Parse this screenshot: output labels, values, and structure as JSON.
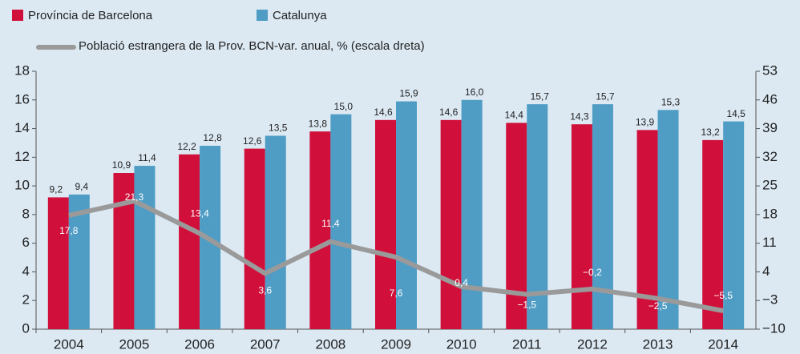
{
  "chart_data": {
    "type": "bar",
    "categories": [
      "2004",
      "2005",
      "2006",
      "2007",
      "2008",
      "2009",
      "2010",
      "2011",
      "2012",
      "2013",
      "2014"
    ],
    "series": [
      {
        "name": "Província de Barcelona",
        "color": "#d0103a",
        "values": [
          9.2,
          10.9,
          12.2,
          12.6,
          13.8,
          14.6,
          14.6,
          14.4,
          14.3,
          13.9,
          13.2
        ],
        "value_labels": [
          "9,2",
          "10,9",
          "12,2",
          "12,6",
          "13,8",
          "14,6",
          "14,6",
          "14,4",
          "14,3",
          "13,9",
          "13,2"
        ]
      },
      {
        "name": "Catalunya",
        "color": "#4f9dc4",
        "values": [
          9.4,
          11.4,
          12.8,
          13.5,
          15.0,
          15.9,
          16.0,
          15.7,
          15.7,
          15.3,
          14.5
        ],
        "value_labels": [
          "9,4",
          "11,4",
          "12,8",
          "13,5",
          "15,0",
          "15,9",
          "16,0",
          "15,7",
          "15,7",
          "15,3",
          "14,5"
        ]
      },
      {
        "name": "Població estrangera de la Prov. BCN-var. anual, % (escala dreta)",
        "type": "line",
        "axis": "y2",
        "color": "#9a9a9a",
        "values": [
          17.8,
          21.3,
          13.4,
          3.6,
          11.4,
          7.6,
          0.4,
          -1.5,
          -0.2,
          -2.5,
          -5.5
        ],
        "value_labels": [
          "17,8",
          "21,3",
          "13,4",
          "3,6",
          "11,4",
          "7,6",
          "0,4",
          "−1,5",
          "−0,2",
          "−2,5",
          "−5,5"
        ]
      }
    ],
    "ylim": [
      0,
      18
    ],
    "yticks": [
      0,
      2,
      4,
      6,
      8,
      10,
      12,
      14,
      16,
      18
    ],
    "y2lim": [
      -10,
      53
    ],
    "y2ticks": [
      {
        "value": -10,
        "label": "−10"
      },
      {
        "value": -3,
        "label": "−3"
      },
      4,
      11,
      18,
      25,
      32,
      39,
      46,
      53
    ],
    "grid": false
  }
}
